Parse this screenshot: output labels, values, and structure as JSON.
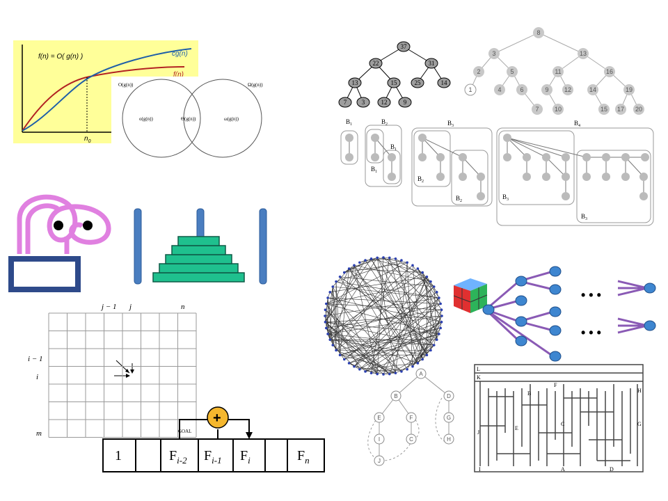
{
  "asymptotic": {
    "formula": "f(n) =  O( g(n) )",
    "cg_label": "cg(n)",
    "f_label": "f(n)",
    "n0_label": "n",
    "n0_sub": "0",
    "bg_color": "#FFFF99",
    "f_color": "#B22222",
    "cg_color": "#1F5FA8"
  },
  "venn": {
    "left_set": "O(g(n))",
    "right_set": "Ω(g(n))",
    "left_only": "o(g(n))",
    "middle": "Θ(g(n))",
    "right_only": "ω(g(n))"
  },
  "heap_tree": {
    "nodes": [
      "37",
      "22",
      "31",
      "13",
      "15",
      "25",
      "14",
      "7",
      "3",
      "12",
      "9"
    ]
  },
  "bst_tree": {
    "nodes": [
      "8",
      "3",
      "13",
      "2",
      "5",
      "11",
      "16",
      "1",
      "4",
      "6",
      "9",
      "12",
      "14",
      "19",
      "7",
      "10",
      "15",
      "17",
      "20"
    ]
  },
  "binomial": {
    "labels": [
      "B",
      "1",
      "B",
      "2",
      "B",
      "3",
      "B",
      "4",
      "B",
      "1",
      "B",
      "1",
      "B",
      "2",
      "B",
      "2",
      "B",
      "3",
      "B",
      "3"
    ]
  },
  "dp_grid": {
    "col_labels": [
      "j − 1",
      "j",
      "n"
    ],
    "row_labels": [
      "i − 1",
      "i",
      "m"
    ],
    "goal_label": "GOAL"
  },
  "fib_array": {
    "cells": [
      "1",
      "",
      "F",
      "F",
      "F",
      "",
      "F"
    ],
    "subs": [
      "",
      "",
      "i-2",
      "i-1",
      "i",
      "",
      "n"
    ],
    "plus": "+"
  },
  "state_tree": {
    "ellipsis": "• • •"
  },
  "letter_tree": {
    "nodes": [
      "A",
      "B",
      "D",
      "E",
      "F",
      "G",
      "I",
      "C",
      "H",
      "J"
    ]
  },
  "maze": {
    "labels": [
      "L",
      "K",
      "F",
      "H",
      "B",
      "G",
      "C",
      "E",
      "J",
      "I",
      "A",
      "D"
    ]
  }
}
